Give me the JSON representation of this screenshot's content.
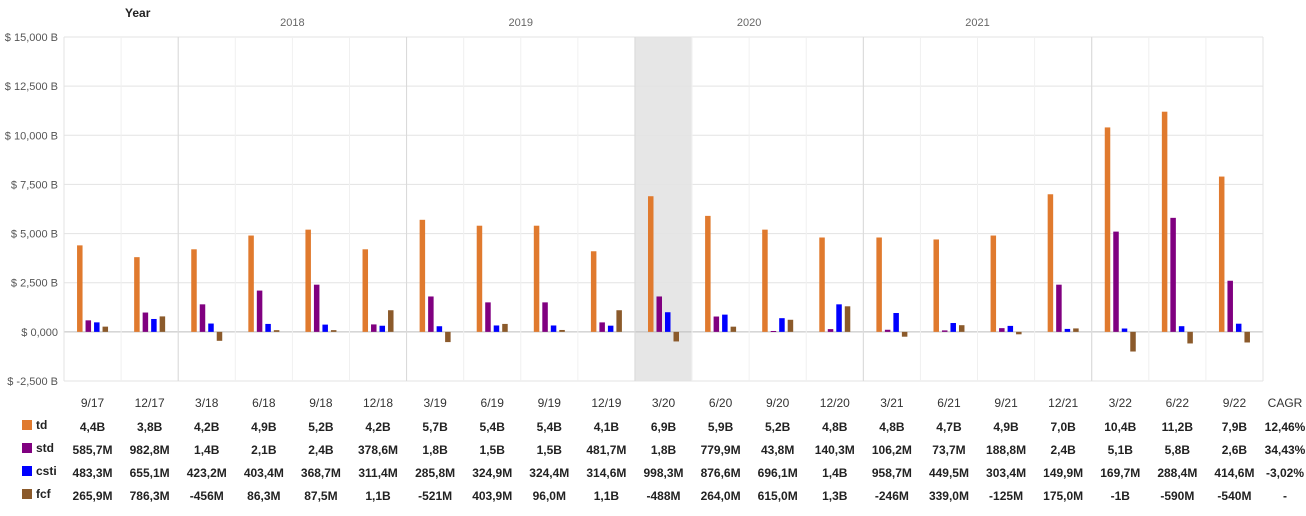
{
  "chart_data": {
    "type": "bar",
    "title": "",
    "year_axis_title": "Year",
    "years": [
      "2018",
      "2019",
      "2020",
      "2021"
    ],
    "categories": [
      "9/17",
      "12/17",
      "3/18",
      "6/18",
      "9/18",
      "12/18",
      "3/19",
      "6/19",
      "9/19",
      "12/19",
      "3/20",
      "6/20",
      "9/20",
      "12/20",
      "3/21",
      "6/21",
      "9/21",
      "12/21",
      "3/22",
      "6/22",
      "9/22"
    ],
    "highlight_category": "3/20",
    "ylim": [
      -2500,
      15000
    ],
    "yticks": [
      "$ -2,500 B",
      "$ 0,000",
      "$ 2,500 B",
      "$ 5,000 B",
      "$ 7,500 B",
      "$ 10,000 B",
      "$ 12,500 B",
      "$ 15,000 B"
    ],
    "yunit": "B",
    "grid": true,
    "series": [
      {
        "name": "td",
        "color": "#E07A2E",
        "values": [
          4400,
          3800,
          4200,
          4900,
          5200,
          4200,
          5700,
          5400,
          5400,
          4100,
          6900,
          5900,
          5200,
          4800,
          4800,
          4700,
          4900,
          7000,
          10400,
          11200,
          7900
        ]
      },
      {
        "name": "std",
        "color": "#800080",
        "values": [
          585.7,
          982.8,
          1400,
          2100,
          2400,
          378.6,
          1800,
          1500,
          1500,
          481.7,
          1800,
          779.9,
          43.8,
          140.3,
          106.2,
          73.7,
          188.8,
          2400,
          5100,
          5800,
          2600
        ]
      },
      {
        "name": "csti",
        "color": "#0000FF",
        "values": [
          483.3,
          655.1,
          423.2,
          403.4,
          368.7,
          311.4,
          285.8,
          324.9,
          324.4,
          314.6,
          998.3,
          876.6,
          696.1,
          1400,
          958.7,
          449.5,
          303.4,
          149.9,
          169.7,
          288.4,
          414.6
        ]
      },
      {
        "name": "fcf",
        "color": "#8B5A2B",
        "values": [
          265.9,
          786.3,
          -456,
          86.3,
          87.5,
          1100,
          -521,
          403.9,
          96.0,
          1100,
          -488,
          264.0,
          615.0,
          1300,
          -246,
          339.0,
          -125,
          175.0,
          -1000,
          -590,
          -540
        ]
      }
    ]
  },
  "table": {
    "cagr_header": "CAGR",
    "rows": [
      {
        "name": "td",
        "cells": [
          "4,4B",
          "3,8B",
          "4,2B",
          "4,9B",
          "5,2B",
          "4,2B",
          "5,7B",
          "5,4B",
          "5,4B",
          "4,1B",
          "6,9B",
          "5,9B",
          "5,2B",
          "4,8B",
          "4,8B",
          "4,7B",
          "4,9B",
          "7,0B",
          "10,4B",
          "11,2B",
          "7,9B"
        ],
        "cagr": "12,46%"
      },
      {
        "name": "std",
        "cells": [
          "585,7M",
          "982,8M",
          "1,4B",
          "2,1B",
          "2,4B",
          "378,6M",
          "1,8B",
          "1,5B",
          "1,5B",
          "481,7M",
          "1,8B",
          "779,9M",
          "43,8M",
          "140,3M",
          "106,2M",
          "73,7M",
          "188,8M",
          "2,4B",
          "5,1B",
          "5,8B",
          "2,6B"
        ],
        "cagr": "34,43%"
      },
      {
        "name": "csti",
        "cells": [
          "483,3M",
          "655,1M",
          "423,2M",
          "403,4M",
          "368,7M",
          "311,4M",
          "285,8M",
          "324,9M",
          "324,4M",
          "314,6M",
          "998,3M",
          "876,6M",
          "696,1M",
          "1,4B",
          "958,7M",
          "449,5M",
          "303,4M",
          "149,9M",
          "169,7M",
          "288,4M",
          "414,6M"
        ],
        "cagr": "-3,02%"
      },
      {
        "name": "fcf",
        "cells": [
          "265,9M",
          "786,3M",
          "-456M",
          "86,3M",
          "87,5M",
          "1,1B",
          "-521M",
          "403,9M",
          "96,0M",
          "1,1B",
          "-488M",
          "264,0M",
          "615,0M",
          "1,3B",
          "-246M",
          "339,0M",
          "-125M",
          "175,0M",
          "-1B",
          "-590M",
          "-540M"
        ],
        "cagr": "-"
      }
    ]
  }
}
